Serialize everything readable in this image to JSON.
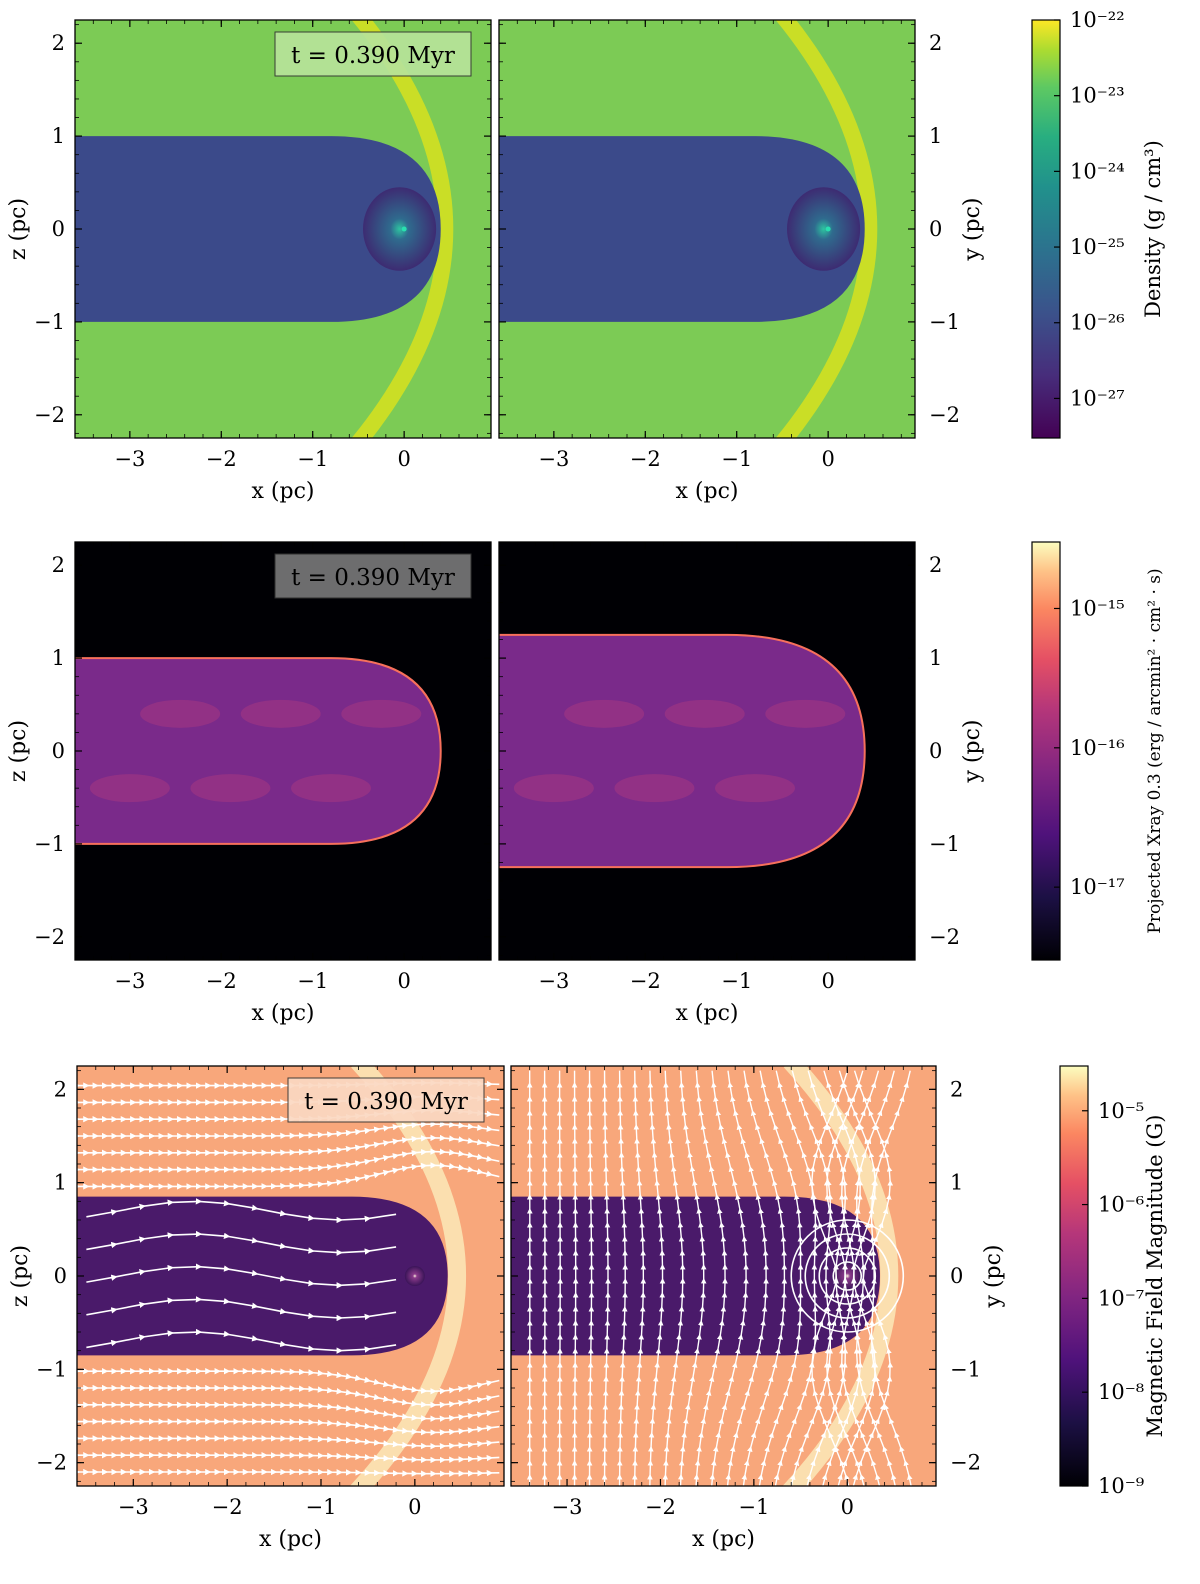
{
  "time_label": "t = 0.390 Myr",
  "chart_data": [
    {
      "type": "heatmap",
      "quantity": "Density",
      "colorbar_label": "Density",
      "colorbar_unit_num": "g",
      "colorbar_unit_den": "cm³",
      "scale": "log",
      "colormap": "viridis",
      "colorbar_range": [
        3e-28,
        1e-22
      ],
      "colorbar_ticks": [
        "10⁻²²",
        "10⁻²³",
        "10⁻²⁴",
        "10⁻²⁵",
        "10⁻²⁶",
        "10⁻²⁷"
      ],
      "colorbar_tick_exponents": [
        -22,
        -23,
        -24,
        -25,
        -26,
        -27
      ],
      "annotation": "t = 0.390 Myr",
      "panels": [
        {
          "xlabel": "x  (pc)",
          "ylabel": "z  (pc)",
          "xlim": [
            -3.6,
            0.95
          ],
          "ylim": [
            -2.25,
            2.25
          ],
          "xticks": [
            -3,
            -2,
            -1,
            0
          ],
          "yticks": [
            -2,
            -1,
            0,
            1,
            2
          ]
        },
        {
          "xlabel": "x  (pc)",
          "ylabel": "y  (pc)",
          "xlim": [
            -3.6,
            0.95
          ],
          "ylim": [
            -2.25,
            2.25
          ],
          "xticks": [
            -3,
            -2,
            -1,
            0
          ],
          "yticks": [
            -2,
            -1,
            0,
            1,
            2
          ]
        }
      ]
    },
    {
      "type": "heatmap",
      "quantity": "Projected Xray 0.3",
      "colorbar_label": "Projected Xray 0.3",
      "colorbar_unit_num": "erg",
      "colorbar_unit_den": "arcmin² · cm² · s",
      "scale": "log",
      "colormap": "magma",
      "colorbar_range": [
        3e-18,
        3e-15
      ],
      "colorbar_ticks": [
        "10⁻¹⁵",
        "10⁻¹⁶",
        "10⁻¹⁷"
      ],
      "colorbar_tick_exponents": [
        -15,
        -16,
        -17
      ],
      "annotation": "t = 0.390 Myr",
      "panels": [
        {
          "xlabel": "x  (pc)",
          "ylabel": "z  (pc)",
          "xlim": [
            -3.6,
            0.95
          ],
          "ylim": [
            -2.25,
            2.25
          ],
          "xticks": [
            -3,
            -2,
            -1,
            0
          ],
          "yticks": [
            -2,
            -1,
            0,
            1,
            2
          ]
        },
        {
          "xlabel": "x  (pc)",
          "ylabel": "y  (pc)",
          "xlim": [
            -3.6,
            0.95
          ],
          "ylim": [
            -2.25,
            2.25
          ],
          "xticks": [
            -3,
            -2,
            -1,
            0
          ],
          "yticks": [
            -2,
            -1,
            0,
            1,
            2
          ]
        }
      ]
    },
    {
      "type": "heatmap",
      "quantity": "Magnetic Field Magnitude",
      "colorbar_label": "Magnetic Field Magnitude  (G)",
      "scale": "log",
      "colormap": "magma",
      "colorbar_range": [
        1e-09,
        3e-05
      ],
      "colorbar_ticks": [
        "10⁻⁵",
        "10⁻⁶",
        "10⁻⁷",
        "10⁻⁸",
        "10⁻⁹"
      ],
      "colorbar_tick_exponents": [
        -5,
        -6,
        -7,
        -8,
        -9
      ],
      "annotation": "t = 0.390 Myr",
      "streamlines": true,
      "panels": [
        {
          "xlabel": "x  (pc)",
          "ylabel": "z  (pc)",
          "xlim": [
            -3.6,
            0.95
          ],
          "ylim": [
            -2.25,
            2.25
          ],
          "xticks": [
            -3,
            -2,
            -1,
            0
          ],
          "yticks": [
            -2,
            -1,
            0,
            1,
            2
          ]
        },
        {
          "xlabel": "x  (pc)",
          "ylabel": "y  (pc)",
          "xlim": [
            -3.6,
            0.95
          ],
          "ylim": [
            -2.25,
            2.25
          ],
          "xticks": [
            -3,
            -2,
            -1,
            0
          ],
          "yticks": [
            -2,
            -1,
            0,
            1,
            2
          ]
        }
      ]
    }
  ],
  "colors": {
    "density_background": "#7ccb55",
    "density_cavity": "#3b4a8a",
    "density_shell": "#d8e21f",
    "xray_background": "#000004",
    "xray_tail": "#7a2a8a",
    "xray_edge": "#f7705c",
    "bfield_background": "#f8a77b",
    "bfield_cavity": "#4a1a6a",
    "bfield_shell": "#fbe5b5",
    "streamline": "#ffffff"
  }
}
